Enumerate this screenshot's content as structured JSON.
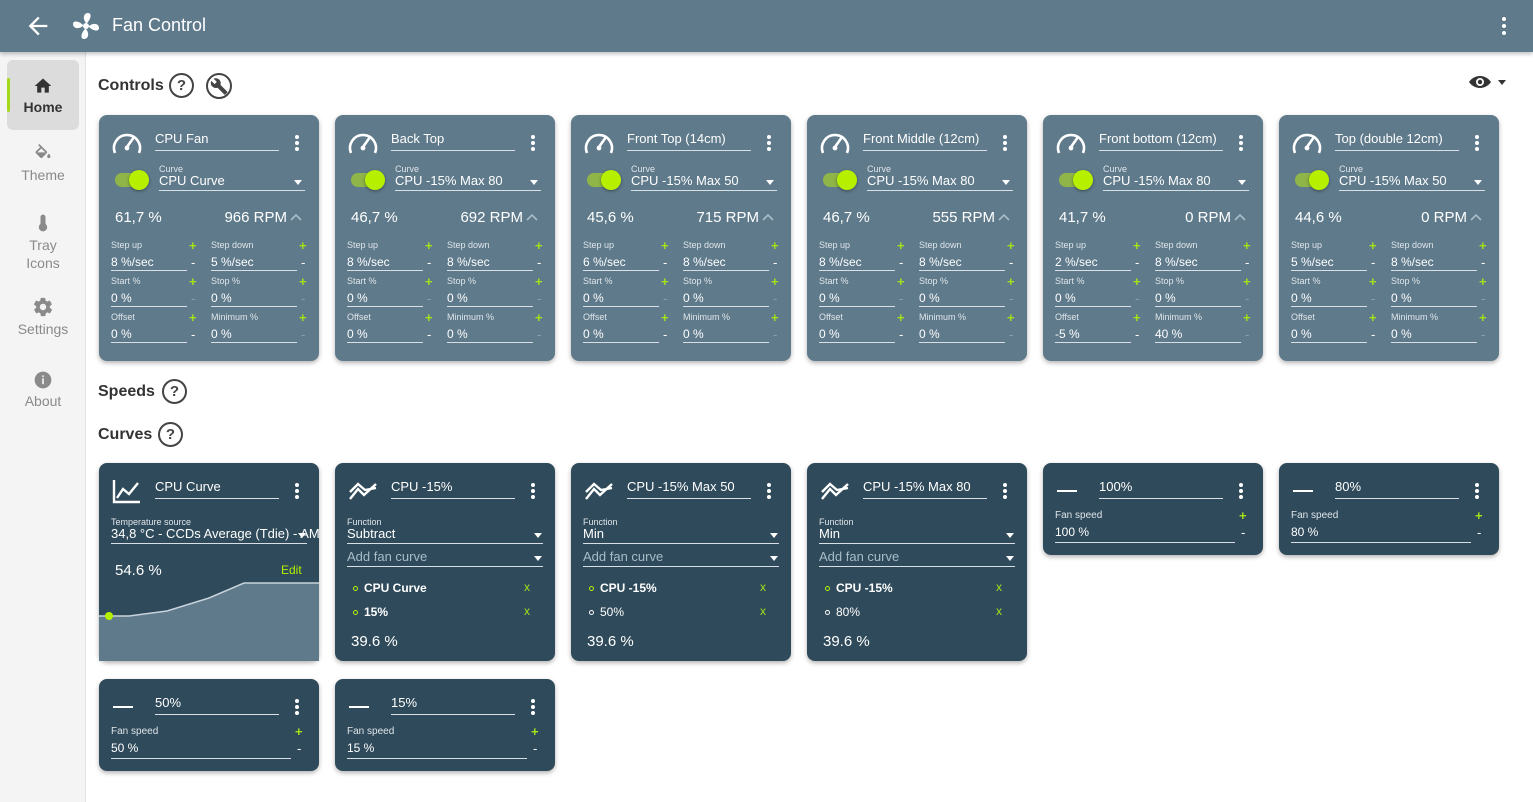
{
  "app": {
    "title": "Fan Control"
  },
  "sidebar": {
    "items": [
      {
        "label": "Home",
        "icon": "home-icon",
        "active": true
      },
      {
        "label": "Theme",
        "icon": "paint-bucket-icon"
      },
      {
        "label": "Tray Icons",
        "icon": "thermometer-icon"
      },
      {
        "label": "Settings",
        "icon": "gear-icon"
      },
      {
        "label": "About",
        "icon": "info-icon"
      }
    ]
  },
  "sections": {
    "controls": "Controls",
    "speeds": "Speeds",
    "curves": "Curves",
    "help": "?"
  },
  "colors": {
    "accent": "#b6f000",
    "control_card": "#5f7a8b",
    "curve_card": "#2f4a5a",
    "titlebar": "#5f7a8b"
  },
  "labels": {
    "curve": "Curve",
    "step_up": "Step up",
    "step_down": "Step down",
    "start": "Start %",
    "stop": "Stop %",
    "offset": "Offset",
    "minimum": "Minimum %",
    "plus": "+",
    "minus": "-",
    "function": "Function",
    "add_fan_curve": "Add fan curve",
    "temperature_source": "Temperature source",
    "fan_speed": "Fan speed",
    "edit": "Edit",
    "remove": "x"
  },
  "controls": [
    {
      "name": "CPU Fan",
      "curve": "CPU Curve",
      "enabled": true,
      "percent": "61,7 %",
      "rpm": "966 RPM",
      "step_up": "8 %/sec",
      "step_down": "5 %/sec",
      "start": "0 %",
      "stop": "0 %",
      "offset": "0 %",
      "minimum": "0 %"
    },
    {
      "name": "Back Top",
      "curve": "CPU -15% Max 80",
      "enabled": true,
      "percent": "46,7 %",
      "rpm": "692 RPM",
      "step_up": "8 %/sec",
      "step_down": "8 %/sec",
      "start": "0 %",
      "stop": "0 %",
      "offset": "0 %",
      "minimum": "0 %"
    },
    {
      "name": "Front Top (14cm)",
      "curve": "CPU -15% Max 50",
      "enabled": true,
      "percent": "45,6 %",
      "rpm": "715 RPM",
      "step_up": "6 %/sec",
      "step_down": "8 %/sec",
      "start": "0 %",
      "stop": "0 %",
      "offset": "0 %",
      "minimum": "0 %"
    },
    {
      "name": "Front Middle (12cm)",
      "curve": "CPU -15% Max 80",
      "enabled": true,
      "percent": "46,7 %",
      "rpm": "555 RPM",
      "step_up": "8 %/sec",
      "step_down": "8 %/sec",
      "start": "0 %",
      "stop": "0 %",
      "offset": "0 %",
      "minimum": "0 %"
    },
    {
      "name": "Front bottom (12cm)",
      "curve": "CPU -15% Max 80",
      "enabled": true,
      "percent": "41,7 %",
      "rpm": "0 RPM",
      "step_up": "2 %/sec",
      "step_down": "8 %/sec",
      "start": "0 %",
      "stop": "0 %",
      "offset": "-5 %",
      "minimum": "40 %"
    },
    {
      "name": "Top (double 12cm)",
      "curve": "CPU -15% Max 50",
      "enabled": true,
      "percent": "44,6 %",
      "rpm": "0 RPM",
      "step_up": "5 %/sec",
      "step_down": "8 %/sec",
      "start": "0 %",
      "stop": "0 %",
      "offset": "0 %",
      "minimum": "0 %"
    }
  ],
  "curves": {
    "graph": {
      "name": "CPU Curve",
      "source": "34,8 °C - CCDs Average (Tdie) - AM",
      "value": "54.6 %"
    },
    "mixes": [
      {
        "name": "CPU -15%",
        "function": "Subtract",
        "items": [
          {
            "label": "CPU Curve",
            "bold": true
          },
          {
            "label": "15%",
            "bold": true
          }
        ],
        "value": "39.6 %"
      },
      {
        "name": "CPU -15% Max 50",
        "function": "Min",
        "items": [
          {
            "label": "CPU -15%",
            "bold": true
          },
          {
            "label": "50%",
            "bold": false
          }
        ],
        "value": "39.6 %"
      },
      {
        "name": "CPU -15% Max 80",
        "function": "Min",
        "items": [
          {
            "label": "CPU -15%",
            "bold": true
          },
          {
            "label": "80%",
            "bold": false
          }
        ],
        "value": "39.6 %"
      }
    ],
    "flats": [
      {
        "name": "100%",
        "speed": "100 %"
      },
      {
        "name": "80%",
        "speed": "80 %"
      },
      {
        "name": "50%",
        "speed": "50 %"
      },
      {
        "name": "15%",
        "speed": "15 %"
      }
    ]
  }
}
